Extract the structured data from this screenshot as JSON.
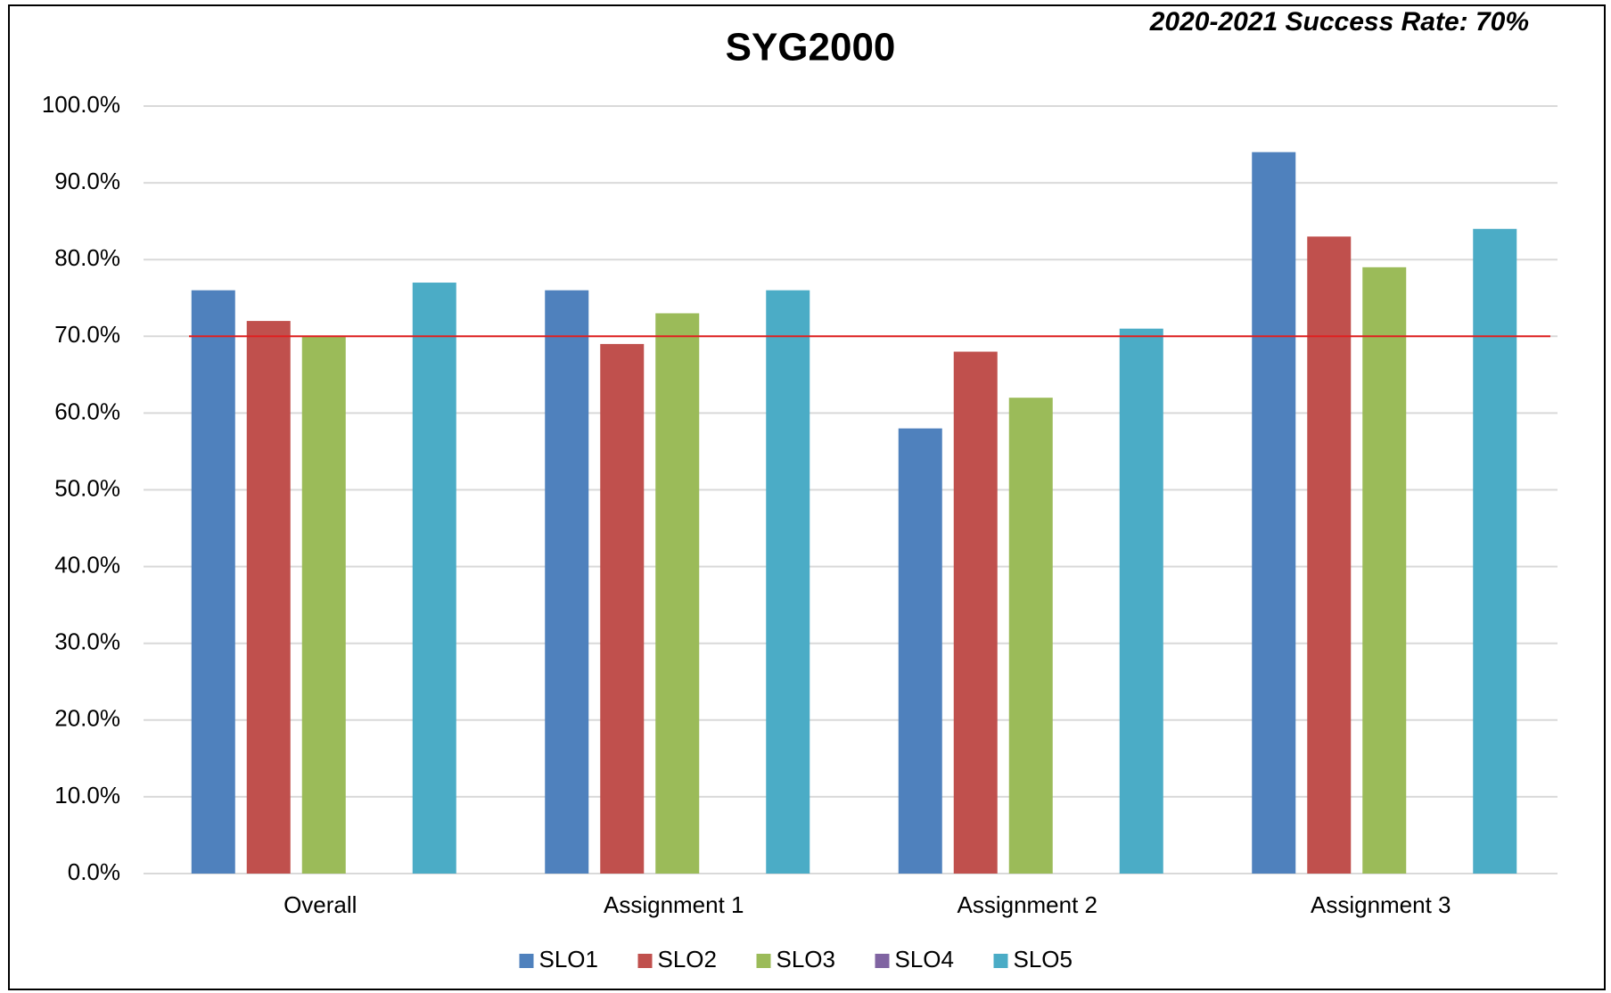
{
  "chart_data": {
    "type": "bar",
    "title": "SYG2000",
    "annotation": "2020-2021 Success Rate: 70%",
    "categories": [
      "Overall",
      "Assignment 1",
      "Assignment 2",
      "Assignment 3"
    ],
    "series": [
      {
        "name": "SLO1",
        "color": "#4f81bd",
        "values": [
          76,
          76,
          58,
          94
        ]
      },
      {
        "name": "SLO2",
        "color": "#c0504d",
        "values": [
          72,
          69,
          68,
          83
        ]
      },
      {
        "name": "SLO3",
        "color": "#9bbb59",
        "values": [
          70,
          73,
          62,
          79
        ]
      },
      {
        "name": "SLO4",
        "color": "#8064a2",
        "values": [
          null,
          null,
          null,
          null
        ]
      },
      {
        "name": "SLO5",
        "color": "#4bacc6",
        "values": [
          77,
          76,
          71,
          84
        ]
      }
    ],
    "reference_line": {
      "value": 70,
      "color": "#e02020"
    },
    "ylim": [
      0,
      100
    ],
    "yticks": [
      {
        "value": 0,
        "label": "0.0%"
      },
      {
        "value": 10,
        "label": "10.0%"
      },
      {
        "value": 20,
        "label": "20.0%"
      },
      {
        "value": 30,
        "label": "30.0%"
      },
      {
        "value": 40,
        "label": "40.0%"
      },
      {
        "value": 50,
        "label": "50.0%"
      },
      {
        "value": 60,
        "label": "60.0%"
      },
      {
        "value": 70,
        "label": "70.0%"
      },
      {
        "value": 80,
        "label": "80.0%"
      },
      {
        "value": 90,
        "label": "90.0%"
      },
      {
        "value": 100,
        "label": "100.0%"
      }
    ],
    "grid": true,
    "legend": "bottom"
  }
}
